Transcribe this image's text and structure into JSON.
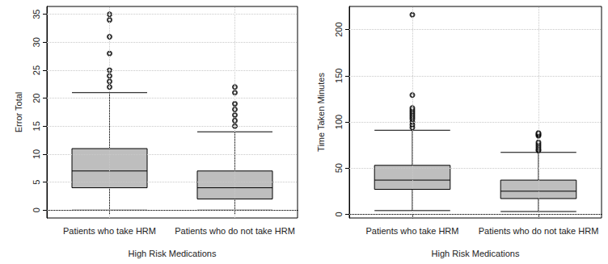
{
  "chart_data": [
    {
      "type": "boxplot",
      "ylabel": "Error Total",
      "xlabel": "High Risk Medications",
      "categories": [
        "Patients who take HRM",
        "Patients who do not take HRM"
      ],
      "values": [
        [
          0,
          4,
          7,
          11,
          21
        ],
        [
          0,
          2,
          4,
          7,
          14
        ]
      ],
      "outliers": [
        [
          22,
          23,
          24,
          25,
          28,
          31,
          34,
          35
        ],
        [
          15,
          16,
          17,
          18,
          19,
          21,
          22
        ]
      ],
      "color": "#bebebe",
      "ylim": [
        -1.4,
        36.4
      ],
      "yticks": [
        0,
        5,
        10,
        15,
        20,
        25,
        30,
        35
      ],
      "grid": true
    },
    {
      "type": "boxplot",
      "ylabel": "Time Taken Minutes",
      "xlabel": "High Risk Medications",
      "categories": [
        "Patients who take HRM",
        "Patients who do not take HRM"
      ],
      "values": [
        [
          4,
          27,
          37,
          53,
          91
        ],
        [
          3,
          17,
          25,
          37,
          67
        ]
      ],
      "outliers": [
        [
          94,
          97,
          100,
          103,
          105,
          107,
          109,
          111,
          113,
          115,
          129,
          216
        ],
        [
          69,
          70,
          72,
          74,
          76,
          78,
          85,
          86,
          87,
          88
        ]
      ],
      "color": "#bebebe",
      "ylim": [
        -4,
        225
      ],
      "yticks": [
        0,
        50,
        100,
        150,
        200
      ],
      "grid": true
    }
  ]
}
